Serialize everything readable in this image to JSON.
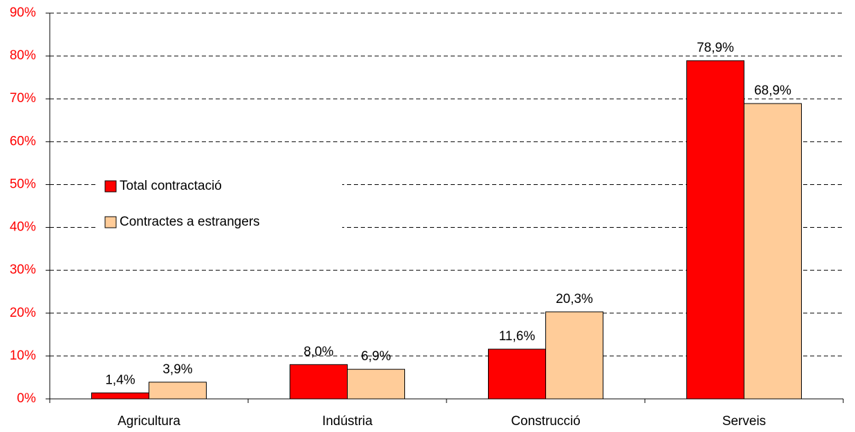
{
  "chart_data": {
    "type": "bar",
    "categories": [
      "Agricultura",
      "Indústria",
      "Construcció",
      "Serveis"
    ],
    "series": [
      {
        "name": "Total contractació",
        "color": "#ff0000",
        "values": [
          1.4,
          8.0,
          11.6,
          78.9
        ],
        "value_labels": [
          "1,4%",
          "8,0%",
          "11,6%",
          "78,9%"
        ]
      },
      {
        "name": "Contractes a estrangers",
        "color": "#ffcc99",
        "values": [
          3.9,
          6.9,
          20.3,
          68.9
        ],
        "value_labels": [
          "3,9%",
          "6,9%",
          "20,3%",
          "68,9%"
        ]
      }
    ],
    "ylim": [
      0,
      90
    ],
    "yticks": [
      {
        "value": 0,
        "label": "0%"
      },
      {
        "value": 10,
        "label": "10%"
      },
      {
        "value": 20,
        "label": "20%"
      },
      {
        "value": 30,
        "label": "30%"
      },
      {
        "value": 40,
        "label": "40%"
      },
      {
        "value": 50,
        "label": "50%"
      },
      {
        "value": 60,
        "label": "60%"
      },
      {
        "value": 70,
        "label": "70%"
      },
      {
        "value": 80,
        "label": "80%"
      },
      {
        "value": 90,
        "label": "90%"
      }
    ],
    "ytick_color": "#ff0000",
    "grid": true,
    "legend": "left"
  }
}
